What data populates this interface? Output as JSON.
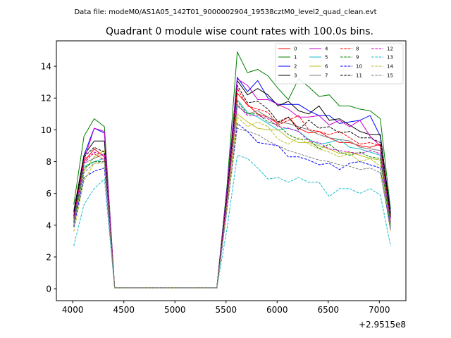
{
  "header": {
    "data_file": "Data file: modeM0/AS1A05_142T01_9000002904_19538cztM0_level2_quad_clean.evt"
  },
  "chart_data": {
    "type": "line",
    "title": "Quadrant 0 module wise count rates with 100.0s bins.",
    "xlabel": "",
    "ylabel": "",
    "offset_label": "+2.9515e8",
    "xlim": [
      3840,
      7260
    ],
    "ylim": [
      -0.75,
      15.6
    ],
    "x_ticks": [
      4000,
      4500,
      5000,
      5500,
      6000,
      6500,
      7000
    ],
    "x_tick_labels": [
      "4000",
      "4500",
      "5000",
      "5500",
      "6000",
      "6500",
      "7000"
    ],
    "y_ticks": [
      0,
      2,
      4,
      6,
      8,
      10,
      12,
      14
    ],
    "y_tick_labels": [
      "0",
      "2",
      "4",
      "6",
      "8",
      "10",
      "12",
      "14"
    ],
    "legend_position": "top-right",
    "x": [
      4010,
      4110,
      4210,
      4310,
      4410,
      4510,
      4610,
      4710,
      4810,
      4910,
      5010,
      5110,
      5210,
      5310,
      5410,
      5510,
      5610,
      5710,
      5810,
      5910,
      6010,
      6110,
      6210,
      6310,
      6410,
      6510,
      6610,
      6710,
      6810,
      6910,
      7010,
      7110
    ],
    "series": [
      {
        "name": "0",
        "color": "#ff0000",
        "dash": false,
        "values": [
          4.2,
          8.0,
          8.8,
          8.3,
          0.05,
          0.05,
          0.05,
          0.05,
          0.05,
          0.05,
          0.05,
          0.05,
          0.05,
          0.05,
          0.05,
          5.5,
          12.3,
          11.6,
          11.0,
          10.8,
          10.4,
          10.8,
          10.1,
          9.8,
          9.9,
          9.5,
          9.2,
          9.2,
          9.0,
          8.9,
          9.1,
          4.6
        ]
      },
      {
        "name": "1",
        "color": "#008000",
        "dash": false,
        "values": [
          5.3,
          9.6,
          10.7,
          10.2,
          0.05,
          0.05,
          0.05,
          0.05,
          0.05,
          0.05,
          0.05,
          0.05,
          0.05,
          0.05,
          0.05,
          6.5,
          14.9,
          13.6,
          13.8,
          13.4,
          12.6,
          11.9,
          13.2,
          12.7,
          12.1,
          12.2,
          11.5,
          11.5,
          11.3,
          11.2,
          10.7,
          5.0
        ]
      },
      {
        "name": "2",
        "color": "#0000ff",
        "dash": false,
        "values": [
          4.8,
          8.4,
          10.1,
          9.8,
          0.05,
          0.05,
          0.05,
          0.05,
          0.05,
          0.05,
          0.05,
          0.05,
          0.05,
          0.05,
          0.05,
          6.3,
          13.3,
          12.4,
          13.1,
          12.0,
          11.6,
          11.6,
          11.6,
          11.2,
          10.9,
          10.9,
          10.4,
          10.5,
          10.6,
          10.9,
          9.6,
          4.8
        ]
      },
      {
        "name": "3",
        "color": "#000000",
        "dash": false,
        "values": [
          4.9,
          8.4,
          9.3,
          9.3,
          0.05,
          0.05,
          0.05,
          0.05,
          0.05,
          0.05,
          0.05,
          0.05,
          0.05,
          0.05,
          0.05,
          6.1,
          13.1,
          12.2,
          12.6,
          12.2,
          11.5,
          11.8,
          11.2,
          11.0,
          11.5,
          10.6,
          10.7,
          10.3,
          9.9,
          9.7,
          9.7,
          4.7
        ]
      },
      {
        "name": "4",
        "color": "#cc00cc",
        "dash": false,
        "values": [
          4.6,
          8.1,
          10.1,
          9.9,
          0.05,
          0.05,
          0.05,
          0.05,
          0.05,
          0.05,
          0.05,
          0.05,
          0.05,
          0.05,
          0.05,
          6.2,
          13.2,
          12.8,
          11.9,
          11.9,
          11.6,
          11.3,
          10.8,
          10.8,
          10.9,
          10.3,
          10.6,
          10.2,
          10.6,
          9.6,
          9.0,
          4.4
        ]
      },
      {
        "name": "5",
        "color": "#17becf",
        "dash": false,
        "values": [
          4.1,
          7.7,
          8.0,
          8.2,
          0.05,
          0.05,
          0.05,
          0.05,
          0.05,
          0.05,
          0.05,
          0.05,
          0.05,
          0.05,
          0.05,
          5.8,
          11.9,
          11.1,
          10.8,
          10.4,
          10.0,
          10.1,
          9.9,
          9.4,
          9.1,
          9.2,
          9.4,
          8.9,
          8.8,
          8.6,
          8.4,
          4.1
        ]
      },
      {
        "name": "6",
        "color": "#bcbd22",
        "dash": false,
        "values": [
          4.0,
          7.4,
          8.3,
          8.7,
          0.05,
          0.05,
          0.05,
          0.05,
          0.05,
          0.05,
          0.05,
          0.05,
          0.05,
          0.05,
          0.05,
          5.4,
          11.0,
          10.5,
          10.1,
          10.0,
          10.0,
          9.5,
          9.2,
          9.2,
          9.0,
          8.8,
          8.5,
          8.6,
          8.4,
          8.2,
          8.1,
          4.0
        ]
      },
      {
        "name": "7",
        "color": "#7f7f7f",
        "dash": false,
        "values": [
          4.3,
          7.9,
          8.2,
          8.5,
          0.05,
          0.05,
          0.05,
          0.05,
          0.05,
          0.05,
          0.05,
          0.05,
          0.05,
          0.05,
          0.05,
          5.9,
          11.5,
          11.0,
          11.2,
          10.8,
          10.5,
          10.4,
          10.2,
          10.0,
          9.7,
          9.5,
          9.4,
          9.3,
          8.9,
          8.8,
          8.7,
          4.2
        ]
      },
      {
        "name": "8",
        "color": "#ff0000",
        "dash": true,
        "values": [
          4.5,
          8.2,
          8.5,
          8.1,
          0.05,
          0.05,
          0.05,
          0.05,
          0.05,
          0.05,
          0.05,
          0.05,
          0.05,
          0.05,
          0.05,
          5.7,
          12.6,
          11.5,
          11.3,
          11.1,
          10.3,
          10.6,
          10.9,
          10.0,
          9.9,
          9.7,
          9.9,
          9.5,
          9.1,
          9.2,
          9.0,
          4.5
        ]
      },
      {
        "name": "9",
        "color": "#008000",
        "dash": true,
        "values": [
          4.2,
          7.6,
          8.0,
          8.0,
          0.05,
          0.05,
          0.05,
          0.05,
          0.05,
          0.05,
          0.05,
          0.05,
          0.05,
          0.05,
          0.05,
          5.5,
          11.8,
          11.0,
          11.0,
          10.5,
          10.3,
          9.7,
          9.4,
          9.4,
          8.8,
          9.1,
          8.6,
          8.4,
          8.6,
          8.3,
          8.2,
          3.9
        ]
      },
      {
        "name": "10",
        "color": "#0000ff",
        "dash": true,
        "values": [
          3.9,
          7.0,
          7.4,
          7.6,
          0.05,
          0.05,
          0.05,
          0.05,
          0.05,
          0.05,
          0.05,
          0.05,
          0.05,
          0.05,
          0.05,
          5.0,
          10.4,
          9.9,
          9.2,
          9.1,
          9.0,
          8.3,
          8.3,
          8.1,
          7.8,
          7.9,
          7.5,
          7.9,
          8.0,
          7.8,
          7.6,
          3.7
        ]
      },
      {
        "name": "11",
        "color": "#000000",
        "dash": true,
        "values": [
          4.6,
          8.3,
          8.9,
          8.6,
          0.05,
          0.05,
          0.05,
          0.05,
          0.05,
          0.05,
          0.05,
          0.05,
          0.05,
          0.05,
          0.05,
          5.9,
          12.8,
          11.7,
          11.8,
          11.3,
          10.5,
          10.8,
          10.0,
          10.6,
          10.1,
          10.2,
          9.8,
          9.9,
          9.5,
          9.5,
          9.2,
          4.5
        ]
      },
      {
        "name": "12",
        "color": "#cc00cc",
        "dash": true,
        "values": [
          4.4,
          7.9,
          8.6,
          8.4,
          0.05,
          0.05,
          0.05,
          0.05,
          0.05,
          0.05,
          0.05,
          0.05,
          0.05,
          0.05,
          0.05,
          5.6,
          11.6,
          10.9,
          10.9,
          10.7,
          10.2,
          10.1,
          9.9,
          9.3,
          9.2,
          8.8,
          8.7,
          8.6,
          8.5,
          8.7,
          8.5,
          4.2
        ]
      },
      {
        "name": "13",
        "color": "#17becf",
        "dash": true,
        "values": [
          2.7,
          5.3,
          6.3,
          6.9,
          0.05,
          0.05,
          0.05,
          0.05,
          0.05,
          0.05,
          0.05,
          0.05,
          0.05,
          0.05,
          0.05,
          3.8,
          8.4,
          8.2,
          7.6,
          6.9,
          7.0,
          6.7,
          7.0,
          6.7,
          6.7,
          5.8,
          6.3,
          6.3,
          6.0,
          6.3,
          5.9,
          2.7
        ]
      },
      {
        "name": "14",
        "color": "#bcbd22",
        "dash": true,
        "values": [
          3.6,
          6.8,
          7.9,
          7.9,
          0.05,
          0.05,
          0.05,
          0.05,
          0.05,
          0.05,
          0.05,
          0.05,
          0.05,
          0.05,
          0.05,
          5.1,
          10.8,
          10.2,
          10.5,
          10.2,
          9.4,
          9.1,
          9.5,
          9.1,
          8.8,
          8.6,
          8.3,
          8.5,
          8.0,
          8.2,
          7.7,
          3.6
        ]
      },
      {
        "name": "15",
        "color": "#7f7f7f",
        "dash": true,
        "values": [
          4.0,
          7.3,
          7.9,
          8.0,
          0.05,
          0.05,
          0.05,
          0.05,
          0.05,
          0.05,
          0.05,
          0.05,
          0.05,
          0.05,
          0.05,
          5.0,
          10.1,
          9.9,
          9.7,
          9.3,
          9.0,
          8.7,
          8.5,
          8.3,
          8.1,
          8.0,
          7.8,
          7.7,
          7.5,
          7.6,
          7.3,
          3.8
        ]
      }
    ]
  }
}
